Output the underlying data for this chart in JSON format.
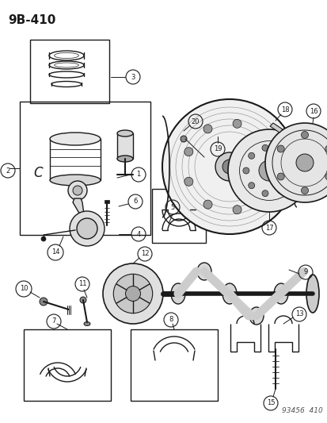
{
  "title": "9B-410",
  "footer": "93456  410",
  "bg_color": "#ffffff",
  "fig_width": 4.14,
  "fig_height": 5.33,
  "dpi": 100
}
